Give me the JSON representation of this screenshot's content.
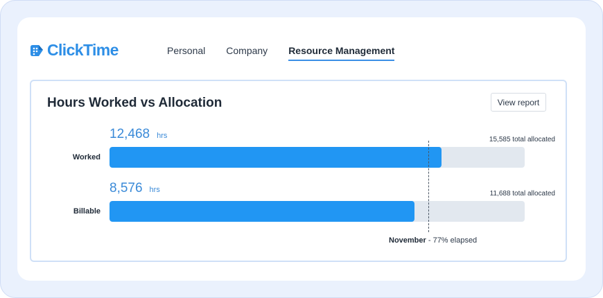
{
  "app": {
    "logo_text": "ClickTime",
    "brand_color": "#2d8ee6"
  },
  "nav": {
    "items": [
      {
        "label": "Personal",
        "active": false
      },
      {
        "label": "Company",
        "active": false
      },
      {
        "label": "Resource Management",
        "active": true
      }
    ]
  },
  "widget": {
    "title": "Hours Worked vs Allocation",
    "view_report_label": "View report",
    "elapsed_month": "November",
    "elapsed_text": " - 77% elapsed",
    "elapsed_fraction": 0.77,
    "rows": [
      {
        "label": "Worked",
        "value": "12,468",
        "unit": "hrs",
        "allocated_text": "15,585 total allocated",
        "fill_fraction": 0.8
      },
      {
        "label": "Billable",
        "value": "8,576",
        "unit": "hrs",
        "allocated_text": "11,688 total allocated",
        "fill_fraction": 0.734
      }
    ],
    "colors": {
      "bar_fill": "#2196f3",
      "bar_track": "#e2e8ef",
      "value_text": "#3a8ad8"
    }
  }
}
